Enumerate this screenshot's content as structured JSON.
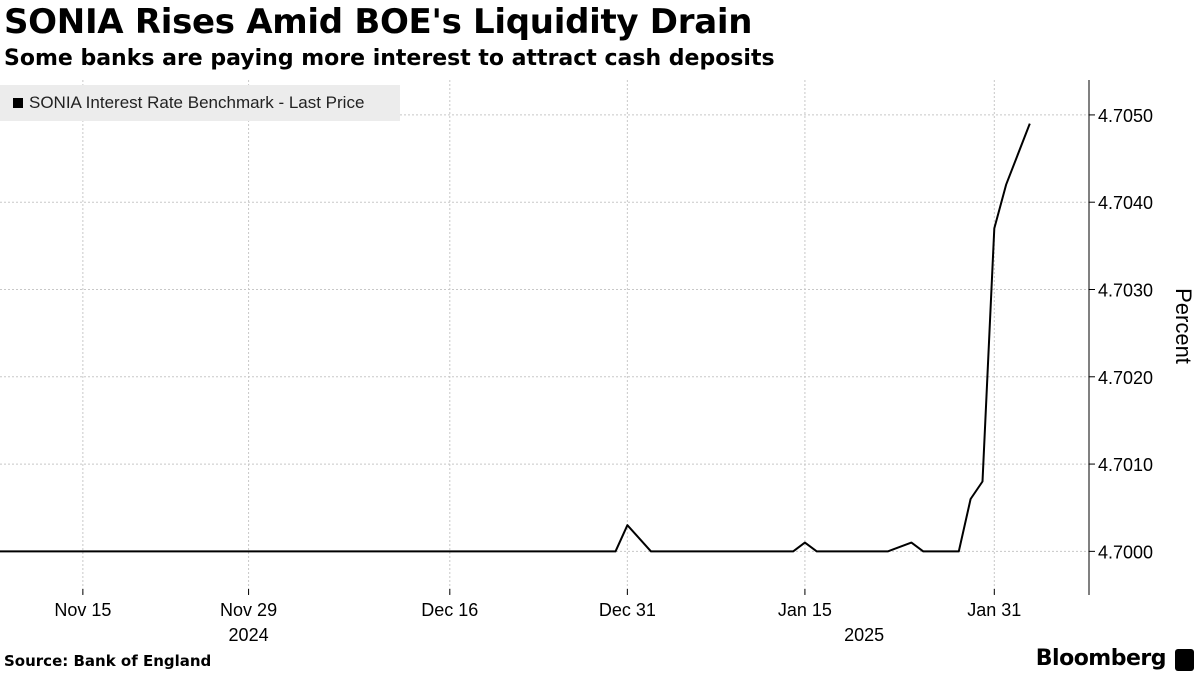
{
  "header": {
    "title": "SONIA Rises Amid BOE's Liquidity Drain",
    "subtitle": "Some banks are paying more interest to attract cash deposits"
  },
  "footer": {
    "source": "Source:  Bank of England",
    "brand": "Bloomberg"
  },
  "colors": {
    "line": "#000000",
    "grid": "#c8c8c8",
    "legend_bg": "#ececec"
  },
  "chart_data": {
    "type": "line",
    "title": "SONIA Rises Amid BOE's Liquidity Drain",
    "subtitle": "Some banks are paying more interest to attract cash deposits",
    "xlabel": "",
    "ylabel": "Percent",
    "ylim": [
      4.6995,
      4.7054
    ],
    "xlim": [
      "2024-11-08",
      "2025-02-08"
    ],
    "yticks": [
      4.7,
      4.701,
      4.702,
      4.703,
      4.704,
      4.705
    ],
    "ytick_labels": [
      "4.7000",
      "4.7010",
      "4.7020",
      "4.7030",
      "4.7040",
      "4.7050"
    ],
    "xticks": [
      {
        "date": "2024-11-15",
        "label": "Nov 15"
      },
      {
        "date": "2024-11-29",
        "label": "Nov 29"
      },
      {
        "date": "2024-12-16",
        "label": "Dec 16"
      },
      {
        "date": "2024-12-31",
        "label": "Dec 31"
      },
      {
        "date": "2025-01-15",
        "label": "Jan 15"
      },
      {
        "date": "2025-01-31",
        "label": "Jan 31"
      }
    ],
    "year_labels": [
      {
        "date": "2024-11-29",
        "label": "2024"
      },
      {
        "date": "2025-01-20",
        "label": "2025"
      }
    ],
    "grid": true,
    "legend_position": "top-left",
    "series": [
      {
        "name": "SONIA Interest Rate Benchmark - Last Price",
        "color": "#000000",
        "points": [
          {
            "x": "2024-11-08",
            "y": 4.7
          },
          {
            "x": "2024-12-28",
            "y": 4.7
          },
          {
            "x": "2024-12-30",
            "y": 4.7
          },
          {
            "x": "2024-12-31",
            "y": 4.7003
          },
          {
            "x": "2025-01-02",
            "y": 4.7
          },
          {
            "x": "2025-01-14",
            "y": 4.7
          },
          {
            "x": "2025-01-15",
            "y": 4.7001
          },
          {
            "x": "2025-01-16",
            "y": 4.7
          },
          {
            "x": "2025-01-22",
            "y": 4.7
          },
          {
            "x": "2025-01-24",
            "y": 4.7001
          },
          {
            "x": "2025-01-25",
            "y": 4.7
          },
          {
            "x": "2025-01-28",
            "y": 4.7
          },
          {
            "x": "2025-01-29",
            "y": 4.7006
          },
          {
            "x": "2025-01-30",
            "y": 4.7008
          },
          {
            "x": "2025-01-31",
            "y": 4.7037
          },
          {
            "x": "2025-02-01",
            "y": 4.7042
          },
          {
            "x": "2025-02-03",
            "y": 4.7049
          }
        ]
      }
    ]
  }
}
